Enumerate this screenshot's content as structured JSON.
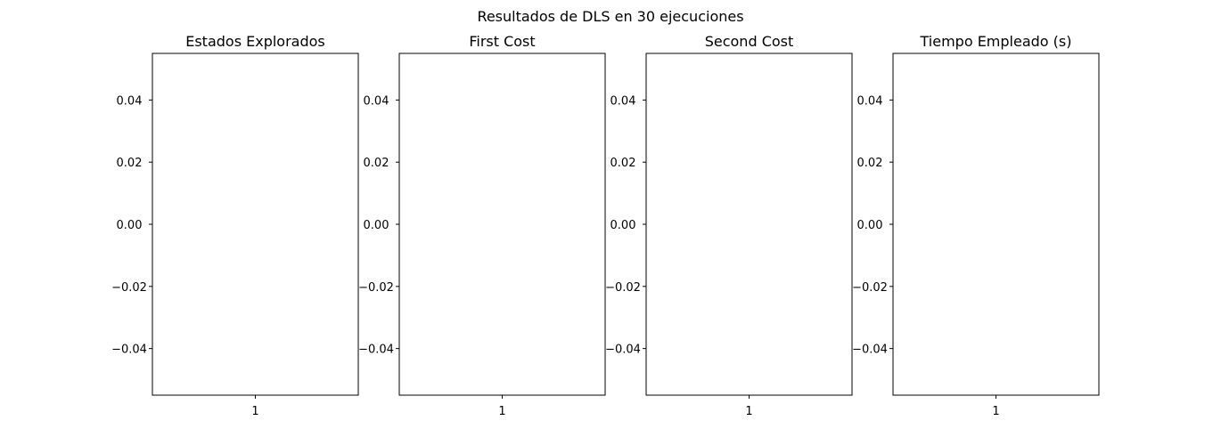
{
  "figure": {
    "title": "Resultados de DLS en 30 ejecuciones"
  },
  "chart_data": [
    {
      "type": "box",
      "title": "Estados Explorados",
      "categories": [
        "1"
      ],
      "x_tick_labels": [
        "1"
      ],
      "y_tick_labels": [
        "0.04",
        "0.02",
        "0.00",
        "−0.02",
        "−0.04"
      ],
      "y_ticks": [
        0.04,
        0.02,
        0.0,
        -0.02,
        -0.04
      ],
      "ylim": [
        -0.055,
        0.055
      ],
      "values": [],
      "grid": false
    },
    {
      "type": "box",
      "title": "First Cost",
      "categories": [
        "1"
      ],
      "x_tick_labels": [
        "1"
      ],
      "y_tick_labels": [
        "0.04",
        "0.02",
        "0.00",
        "−0.02",
        "−0.04"
      ],
      "y_ticks": [
        0.04,
        0.02,
        0.0,
        -0.02,
        -0.04
      ],
      "ylim": [
        -0.055,
        0.055
      ],
      "values": [],
      "grid": false
    },
    {
      "type": "box",
      "title": "Second Cost",
      "categories": [
        "1"
      ],
      "x_tick_labels": [
        "1"
      ],
      "y_tick_labels": [
        "0.04",
        "0.02",
        "0.00",
        "−0.02",
        "−0.04"
      ],
      "y_ticks": [
        0.04,
        0.02,
        0.0,
        -0.02,
        -0.04
      ],
      "ylim": [
        -0.055,
        0.055
      ],
      "values": [],
      "grid": false
    },
    {
      "type": "box",
      "title": "Tiempo Empleado (s)",
      "categories": [
        "1"
      ],
      "x_tick_labels": [
        "1"
      ],
      "y_tick_labels": [
        "0.04",
        "0.02",
        "0.00",
        "−0.02",
        "−0.04"
      ],
      "y_ticks": [
        0.04,
        0.02,
        0.0,
        -0.02,
        -0.04
      ],
      "ylim": [
        -0.055,
        0.055
      ],
      "values": [],
      "grid": false
    }
  ]
}
